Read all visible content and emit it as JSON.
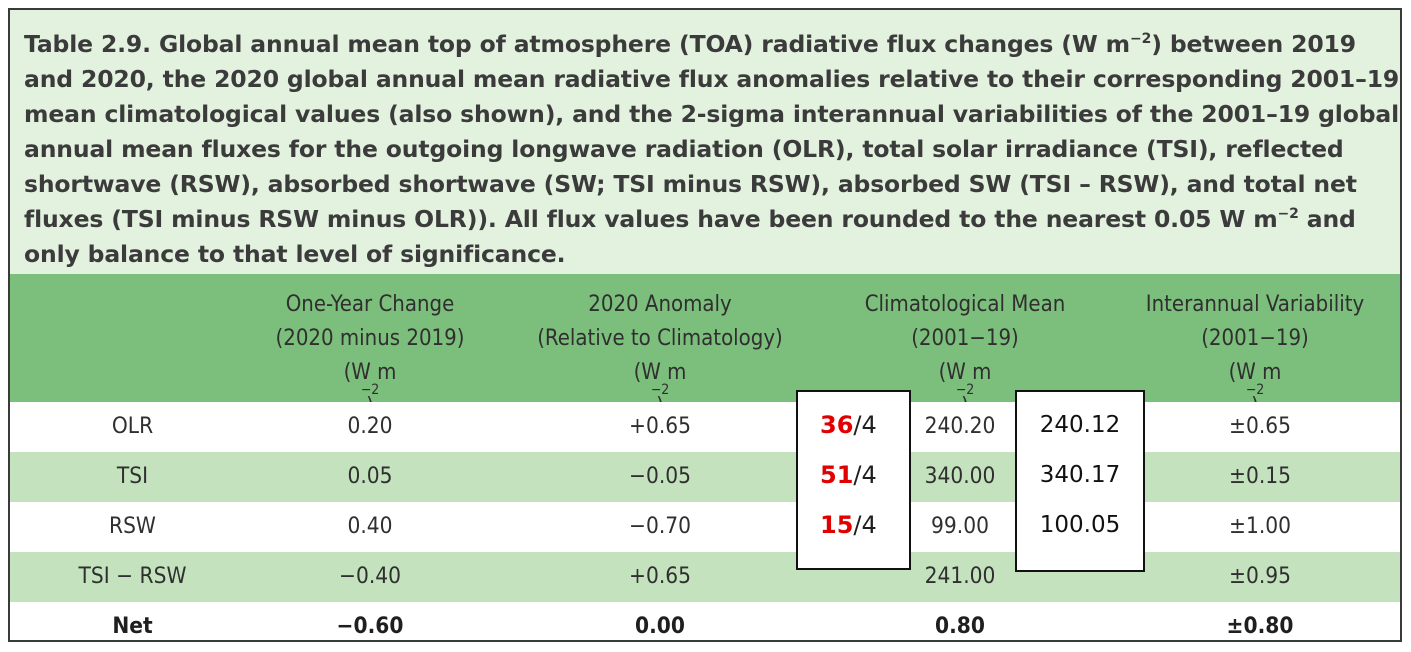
{
  "caption": {
    "lines": [
      {
        "pre": "Table 2.9. Global annual mean top of atmosphere (TOA) radiative flux changes (W m",
        "sup": "−2",
        "post": ") between 2019"
      },
      {
        "pre": "and 2020, the 2020 global annual mean radiative flux anomalies relative to their corresponding 2001–19",
        "sup": "",
        "post": ""
      },
      {
        "pre": "mean climatological values (also shown), and the 2-sigma interannual variabilities of the 2001–19 global",
        "sup": "",
        "post": ""
      },
      {
        "pre": "annual mean fluxes for the outgoing longwave radiation (OLR), total solar irradiance (TSI), reflected",
        "sup": "",
        "post": ""
      },
      {
        "pre": "shortwave (RSW), absorbed shortwave (SW; TSI minus RSW), absorbed SW (TSI – RSW), and total net",
        "sup": "",
        "post": ""
      },
      {
        "pre": "fluxes (TSI minus RSW minus OLR)). All flux values have been rounded to the nearest 0.05 W m",
        "sup": "−2",
        "post": " and"
      },
      {
        "pre": "only balance to that level of significance.",
        "sup": "",
        "post": ""
      }
    ]
  },
  "header": {
    "col1": {
      "l1": "One-Year Change",
      "l2": "(2020 minus 2019)",
      "l3": "(W m",
      "sup": "−2",
      "l3post": ")"
    },
    "col2": {
      "l1": "2020 Anomaly",
      "l2": "(Relative to Climatology)",
      "l3": "(W m",
      "sup": "−2",
      "l3post": ")"
    },
    "col3": {
      "l1": "Climatological Mean",
      "l2": "(2001−19)",
      "l3": "(W m",
      "sup": "−2",
      "l3post": ")"
    },
    "col4": {
      "l1": "Interannual Variability",
      "l2": "(2001−19)",
      "l3": "(W m",
      "sup": "−2",
      "l3post": ")"
    }
  },
  "rows": [
    {
      "label": "OLR",
      "change": "0.20",
      "anomaly": "+0.65",
      "mean": "240.20",
      "variability": "±0.65"
    },
    {
      "label": "TSI",
      "change": "0.05",
      "anomaly": "−0.05",
      "mean": "340.00",
      "variability": "±0.15"
    },
    {
      "label": "RSW",
      "change": "0.40",
      "anomaly": "−0.70",
      "mean": "99.00",
      "variability": "±1.00"
    },
    {
      "label": "TSI − RSW",
      "change": "−0.40",
      "anomaly": "+0.65",
      "mean": "241.00",
      "variability": "±0.95"
    },
    {
      "label": "Net",
      "change": "−0.60",
      "anomaly": "0.00",
      "mean": "0.80",
      "variability": "±0.80"
    }
  ],
  "annotations": {
    "fractions": [
      {
        "num": "36",
        "den": "/4"
      },
      {
        "num": "51",
        "den": "/4"
      },
      {
        "num": "15",
        "den": "/4"
      }
    ],
    "handwritten": [
      "240.12",
      "340.17",
      "100.05"
    ]
  },
  "colors": {
    "caption_bg": "#e3f1df",
    "header_bg": "#7cbe7c",
    "stripe_bg": "#c3e2bd",
    "annotation_red": "#e00000"
  }
}
